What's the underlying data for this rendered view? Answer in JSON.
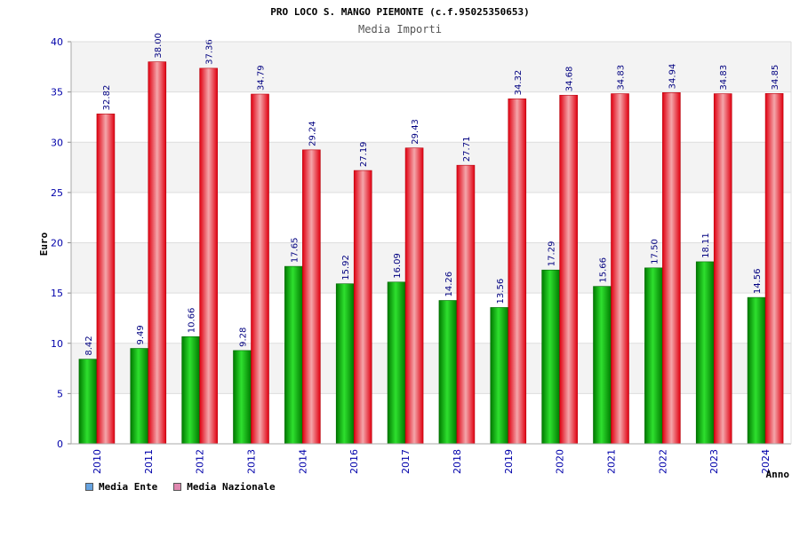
{
  "chart_data": {
    "type": "bar",
    "title": "PRO LOCO S. MANGO PIEMONTE (c.f.95025350653)",
    "subtitle": "Media Importi",
    "xlabel": "Anno",
    "ylabel": "Euro",
    "ylim": [
      0,
      40
    ],
    "yticks": [
      0,
      5,
      10,
      15,
      20,
      25,
      30,
      35,
      40
    ],
    "categories": [
      "2010",
      "2011",
      "2012",
      "2013",
      "2014",
      "2016",
      "2017",
      "2018",
      "2019",
      "2020",
      "2021",
      "2022",
      "2023",
      "2024"
    ],
    "series": [
      {
        "name": "Media Ente",
        "values": [
          8.42,
          9.49,
          10.66,
          9.28,
          17.65,
          15.92,
          16.09,
          14.26,
          13.56,
          17.29,
          15.66,
          17.5,
          18.11,
          14.56
        ],
        "labels": [
          "8.42",
          "9.49",
          "10.66",
          "9.28",
          "17.65",
          "15.92",
          "16.09",
          "14.26",
          "13.56",
          "17.29",
          "15.66",
          "17.50",
          "18.11",
          "14.56"
        ],
        "color": "#00b000"
      },
      {
        "name": "Media Nazionale",
        "values": [
          32.82,
          38.0,
          37.36,
          34.79,
          29.24,
          27.19,
          29.43,
          27.71,
          34.32,
          34.68,
          34.83,
          34.94,
          34.83,
          34.85
        ],
        "labels": [
          "32.82",
          "38.00",
          "37.36",
          "34.79",
          "29.24",
          "27.19",
          "29.43",
          "27.71",
          "34.32",
          "34.68",
          "34.83",
          "34.94",
          "34.83",
          "34.85"
        ],
        "color": "#e8101a"
      }
    ],
    "legend": [
      {
        "label": "Media Ente",
        "color": "#66a3e0"
      },
      {
        "label": "Media Nazionale",
        "color": "#e088b0"
      }
    ],
    "grid": true,
    "legend_position": "bottom-left"
  }
}
